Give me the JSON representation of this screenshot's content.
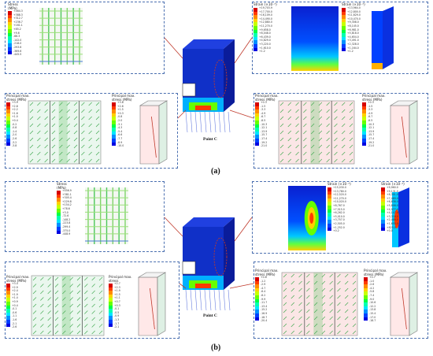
{
  "sublabels": {
    "a": "(a)",
    "b": "(b)"
  },
  "point_label": "Point C",
  "colors": {
    "frame": "#4a6fb0",
    "callout": "#c0392b",
    "model_blue": "#1030c8",
    "rebar": "#6a7fe0"
  },
  "scale_colors": [
    "#d60000",
    "#ff3a00",
    "#ff8a00",
    "#ffd000",
    "#c8ff00",
    "#66ff00",
    "#00ff44",
    "#00ffb0",
    "#00e5ff",
    "#0090ff",
    "#0040ff",
    "#0000e0"
  ],
  "a": {
    "stress": {
      "title": "Stress\n(MPa)",
      "values": [
        "+464.3",
        "+388.3",
        "+312.7",
        "+236.7",
        "+161.1",
        "+85.2",
        "+9.6",
        "-66.3",
        "-142.0",
        "-218.0",
        "-293.6",
        "-369.6",
        "-445.5"
      ]
    },
    "strain1": {
      "title": "Strain (×10⁻³)",
      "values": [
        "+19,703.9",
        "+17,700.0",
        "+16,109.0",
        "+14,490.0",
        "+12,880.0",
        "+11,270.0",
        "+9,658.0",
        "+8,048.0",
        "+6,439.0",
        "+4,829.0",
        "+3,220.0",
        "+1,610.0",
        "+1.2"
      ]
    },
    "strain2": {
      "title": "Strain (×10⁻³)",
      "values": [
        "+13,964.0",
        "+12,800.0",
        "+11,629.0",
        "+10,470.0",
        "+9,308.0",
        "+8,145.0",
        "+6,981.0",
        "+5,818.0",
        "+4,654.0",
        "+3,491.0",
        "+2,328.0",
        "+1,164.0",
        "+1.2"
      ]
    },
    "pms1": {
      "title": "Principal max.\nstress (MPa)",
      "values": [
        "+3.9",
        "+2.8",
        "+2.2",
        "+1.6",
        "+1.0",
        "+0.4",
        "-0.2",
        "-0.8",
        "-1.4",
        "-2.0",
        "-2.6",
        "-3.2",
        "-3.8"
      ]
    },
    "pms2": {
      "title": "Principal max.\nstress (MPa)",
      "values": [
        "+3.8",
        "+2.6",
        "+1.5",
        "+0.3",
        "-0.8",
        "-2.0",
        "-3.1",
        "-4.3",
        "-5.4",
        "-6.6",
        "-7.7",
        "-8.9",
        "-10.0"
      ]
    },
    "pms3": {
      "title": "Principal max.\nstress (MPa)",
      "values": [
        "+0.3",
        "-1.5",
        "-3.3",
        "-4.9",
        "-6.7",
        "-8.5",
        "-10.3",
        "-12.1",
        "-13.9",
        "-15.7",
        "-17.4",
        "-19.2",
        "-21.0"
      ]
    },
    "pms4": {
      "title": "Principal max.\nstress (MPa)",
      "values": [
        "+0.3",
        "-1.5",
        "-3.3",
        "-4.9",
        "-6.7",
        "-8.5",
        "-10.3",
        "-12.1",
        "-13.9",
        "-15.7",
        "-17.4",
        "-19.2",
        "-21.0"
      ]
    }
  },
  "b": {
    "stress": {
      "title": "Stress\n(MPa)",
      "values": [
        "+456.9",
        "+381.1",
        "+305.4",
        "+229.8",
        "+154.2",
        "+78.6",
        "+3.0",
        "-72.6",
        "-148.2",
        "-223.8",
        "-299.4",
        "-375.0",
        "-448.9"
      ]
    },
    "strain1": {
      "title": "Strain (×10⁻³)",
      "values": [
        "+15,030.0",
        "+13,780.0",
        "+12,520.0",
        "+11,270.0",
        "+10,020.0",
        "+8,767.0",
        "+7,515.0",
        "+6,262.0",
        "+5,010.0",
        "+3,757.0",
        "+2,505.0",
        "+1,252.0",
        "+0.2"
      ]
    },
    "strain2": {
      "title": "Strain (×10⁻³)",
      "values": [
        "+9,960.0",
        "+9,131.0",
        "+8,301.0",
        "+7,469.0",
        "+6,638.0",
        "+5,808.0",
        "+4,977.0",
        "+4,147.0",
        "+3,316.0",
        "+2,486.0",
        "+1,655.0",
        "+825.0",
        "+0.0"
      ]
    },
    "pms1": {
      "title": "Principal max.\nstress (MPa)",
      "values": [
        "+3.4",
        "+2.9",
        "+2.4",
        "+1.9",
        "+1.4",
        "+0.9",
        "+0.4",
        "-0.1",
        "-0.6",
        "-1.1",
        "-1.6",
        "-2.1",
        "-2.6"
      ]
    },
    "pms2": {
      "title": "Principal max.\nstress",
      "values": [
        "+2.7",
        "+2.3",
        "+1.9",
        "+1.5",
        "+1.1",
        "+0.7",
        "+0.3",
        "-0.1",
        "-0.5",
        "-0.9",
        "-1.3",
        "-1.7",
        "-2.1"
      ]
    },
    "pms3": {
      "title": "Principal max.\nstress (MPa)",
      "values": [
        "+0.6",
        "-1.2",
        "-2.9",
        "-4.7",
        "-6.4",
        "-8.2",
        "-9.9",
        "-11.7",
        "-13.4",
        "-15.2",
        "-16.9",
        "-18.7",
        "-20.4"
      ]
    },
    "pms4": {
      "title": "Principal max.\nstress (MPa)",
      "values": [
        "+0.7",
        "-1.0",
        "-2.6",
        "-4.2",
        "-5.8",
        "-7.4",
        "-9.0",
        "-10.6",
        "-12.2",
        "-13.8",
        "-15.4",
        "-17.0",
        "-18.7"
      ]
    }
  }
}
